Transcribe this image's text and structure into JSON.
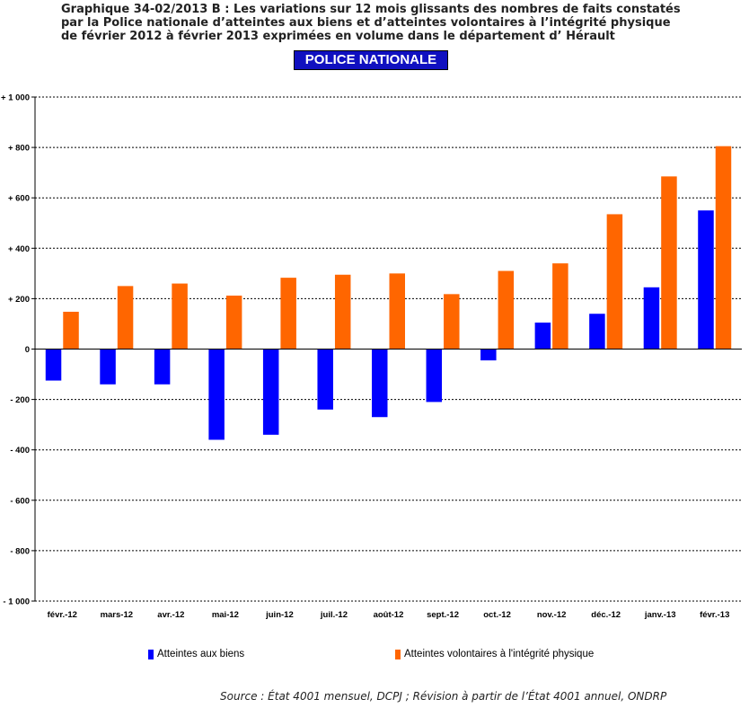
{
  "title": "Graphique 34-02/2013 B : Les variations sur 12 mois glissants des nombres de faits constatés par la Police nationale d’atteintes aux biens et d’atteintes volontaires à l’intégrité physique de février 2012 à février 2013 exprimées en volume dans le département d’ Hérault",
  "banner": "POLICE NATIONALE",
  "source": "Source : État 4001 mensuel, DCPJ ; Révision à partir de l’État 4001 annuel, ONDRP",
  "chart_data": {
    "type": "bar",
    "title": "Graphique 34-02/2013 B : Les variations sur 12 mois glissants des nombres de faits constatés par la Police nationale d’atteintes aux biens et d’atteintes volontaires à l’intégrité physique de février 2012 à février 2013 exprimées en volume dans le département d’ Hérault",
    "subtitle": "POLICE NATIONALE",
    "xlabel": "",
    "ylabel": "",
    "categories": [
      "févr.-12",
      "mars-12",
      "avr.-12",
      "mai-12",
      "juin-12",
      "juil.-12",
      "août-12",
      "sept.-12",
      "oct.-12",
      "nov.-12",
      "déc.-12",
      "janv.-13",
      "févr.-13"
    ],
    "series": [
      {
        "name": "Atteintes aux biens",
        "color": "#0000ff",
        "values": [
          -125,
          -140,
          -140,
          -360,
          -340,
          -240,
          -270,
          -210,
          -45,
          105,
          140,
          245,
          550
        ]
      },
      {
        "name": "Atteintes volontaires à l'intégrité physique",
        "color": "#ff6600",
        "values": [
          148,
          250,
          260,
          212,
          283,
          295,
          300,
          218,
          310,
          340,
          535,
          685,
          805
        ]
      }
    ],
    "ylim": [
      -1000,
      1000
    ],
    "yticks": [
      1000,
      800,
      600,
      400,
      200,
      0,
      -200,
      -400,
      -600,
      -800,
      -1000
    ],
    "ytick_labels": [
      "+ 1 000",
      "+ 800",
      "+ 600",
      "+ 400",
      "+ 200",
      "0",
      "- 200",
      "- 400",
      "- 600",
      "- 800",
      "- 1 000"
    ],
    "grid": true,
    "legend_position": "bottom"
  }
}
